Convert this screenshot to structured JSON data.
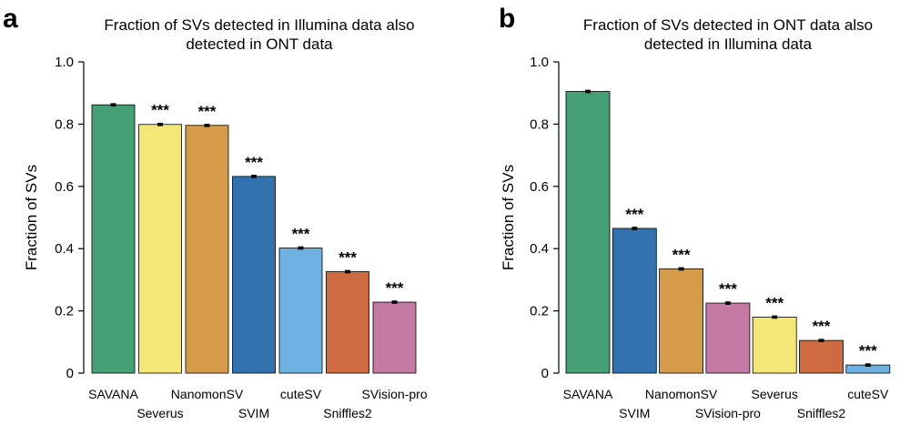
{
  "chart_data": [
    {
      "type": "bar",
      "panel": "a",
      "title_lines": [
        "Fraction of SVs detected in Illumina data also",
        "detected in ONT data"
      ],
      "ylabel": "Fraction of SVs",
      "xlabel": "",
      "ylim": [
        0,
        1.0
      ],
      "yticks": [
        "0",
        "0.2",
        "0.4",
        "0.6",
        "0.8",
        "1.0"
      ],
      "ytick_values": [
        0,
        0.2,
        0.4,
        0.6,
        0.8,
        1.0
      ],
      "grid": false,
      "categories": [
        "SAVANA",
        "Severus",
        "NanomonSV",
        "SVIM",
        "cuteSV",
        "Sniffles2",
        "SVision-pro"
      ],
      "values": [
        0.862,
        0.799,
        0.796,
        0.632,
        0.402,
        0.326,
        0.228
      ],
      "errors": [
        0.003,
        0.003,
        0.003,
        0.003,
        0.003,
        0.003,
        0.003
      ],
      "significance": [
        "",
        "***",
        "***",
        "***",
        "***",
        "***",
        "***"
      ],
      "colors": [
        "#45a076",
        "#f3e777",
        "#d49b4b",
        "#3372af",
        "#6fb2e2",
        "#cd6a3f",
        "#c57aa6"
      ]
    },
    {
      "type": "bar",
      "panel": "b",
      "title_lines": [
        "Fraction of SVs detected in ONT data also",
        "detected in Illumina data"
      ],
      "ylabel": "Fraction of SVs",
      "xlabel": "",
      "ylim": [
        0,
        1.0
      ],
      "yticks": [
        "0",
        "0.2",
        "0.4",
        "0.6",
        "0.8",
        "1.0"
      ],
      "ytick_values": [
        0,
        0.2,
        0.4,
        0.6,
        0.8,
        1.0
      ],
      "grid": false,
      "categories": [
        "SAVANA",
        "SVIM",
        "NanomonSV",
        "SVision-pro",
        "Severus",
        "Sniffles2",
        "cuteSV"
      ],
      "values": [
        0.905,
        0.465,
        0.335,
        0.225,
        0.18,
        0.105,
        0.026
      ],
      "errors": [
        0.003,
        0.003,
        0.003,
        0.003,
        0.003,
        0.003,
        0.003
      ],
      "significance": [
        "",
        "***",
        "***",
        "***",
        "***",
        "***",
        "***"
      ],
      "colors": [
        "#45a076",
        "#3372af",
        "#d49b4b",
        "#c57aa6",
        "#f3e777",
        "#cd6a3f",
        "#6fb2e2"
      ]
    }
  ]
}
